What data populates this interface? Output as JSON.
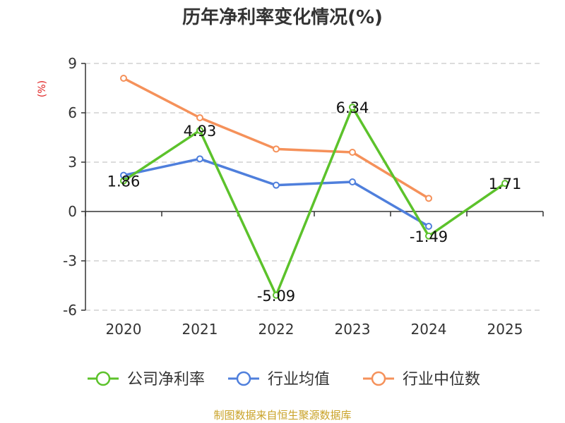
{
  "chart_data": {
    "type": "line",
    "title": "历年净利率变化情况(%)",
    "ylabel": "(%)",
    "categories": [
      "2020",
      "2021",
      "2022",
      "2023",
      "2024",
      "2025"
    ],
    "ylim": [
      -6,
      9
    ],
    "yticks": [
      9,
      6,
      3,
      0,
      -3,
      -6
    ],
    "grid": true,
    "legend_position": "bottom",
    "series": [
      {
        "name": "公司净利率",
        "color": "#5cc22b",
        "values": [
          1.86,
          4.93,
          -5.09,
          6.34,
          -1.49,
          1.71
        ],
        "labels": [
          "1.86",
          "4.93",
          "-5.09",
          "6.34",
          "-1.49",
          "1.71"
        ]
      },
      {
        "name": "行业均值",
        "color": "#4f7fdc",
        "values": [
          2.2,
          3.2,
          1.6,
          1.8,
          -0.9,
          null
        ]
      },
      {
        "name": "行业中位数",
        "color": "#f5915a",
        "values": [
          8.1,
          5.7,
          3.8,
          3.6,
          0.8,
          null
        ]
      }
    ]
  },
  "source": "制图数据来自恒生聚源数据库"
}
